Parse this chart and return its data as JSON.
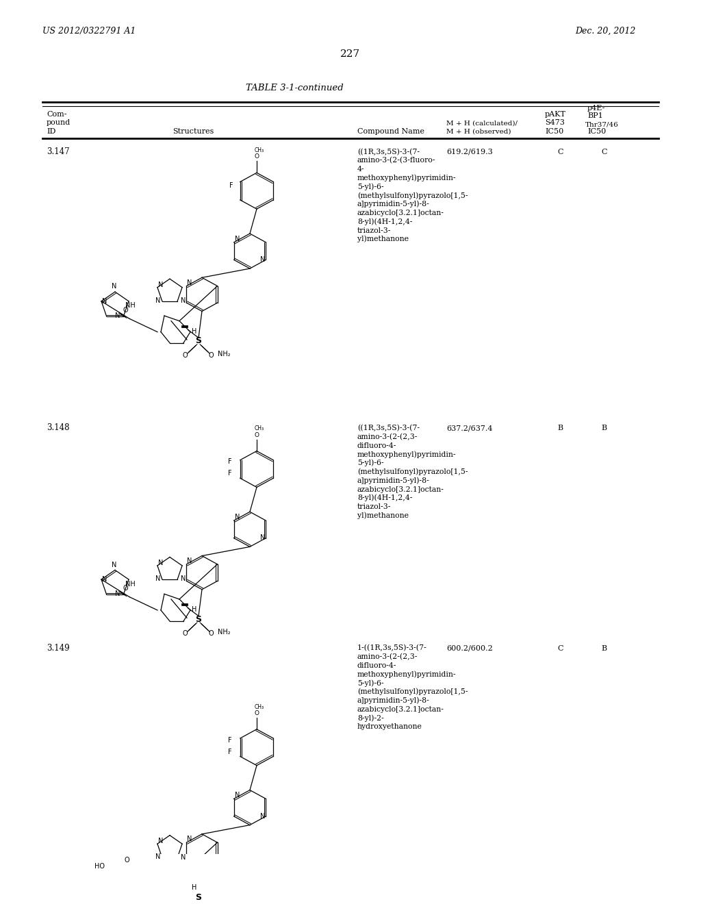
{
  "page_number": "227",
  "patent_number": "US 2012/0322791 A1",
  "patent_date": "Dec. 20, 2012",
  "table_title": "TABLE 3-1-continued",
  "rows": [
    {
      "id": "3.147",
      "mh": "619.2/619.3",
      "pakt": "C",
      "bp1": "C",
      "name": "((1R,3s,5S)-3-(7-amino-3-(2-(3-fluoro-4-methoxyphenyl)pyrimidin-5-yl)-6-(methylsulfonyl)pyrazolo[1,5-a]pyrimidin-5-yl)-8-azabicyclo[3.2.1]octan-8-yl)(4H-1,2,4-triazol-3-yl)methanone"
    },
    {
      "id": "3.148",
      "mh": "637.2/637.4",
      "pakt": "B",
      "bp1": "B",
      "name": "((1R,3s,5S)-3-(7-amino-3-(2-(2,3-difluoro-4-methoxyphenyl)pyrimidin-5-yl)-6-(methylsulfonyl)pyrazolo[1,5-a]pyrimidin-5-yl)-8-azabicyclo[3.2.1]octan-8-yl)(4H-1,2,4-triazol-3-yl)methanone"
    },
    {
      "id": "3.149",
      "mh": "600.2/600.2",
      "pakt": "C",
      "bp1": "B",
      "name": "1-((1R,3s,5S)-3-(7-amino-3-(2-(2,3-difluoro-4-methoxyphenyl)pyrimidin-5-yl)-6-(methylsulfonyl)pyrazolo[1,5-a]pyrimidin-5-yl)-8-azabicyclo[3.2.1]octan-8-yl)-2-hydroxyethanone"
    }
  ]
}
